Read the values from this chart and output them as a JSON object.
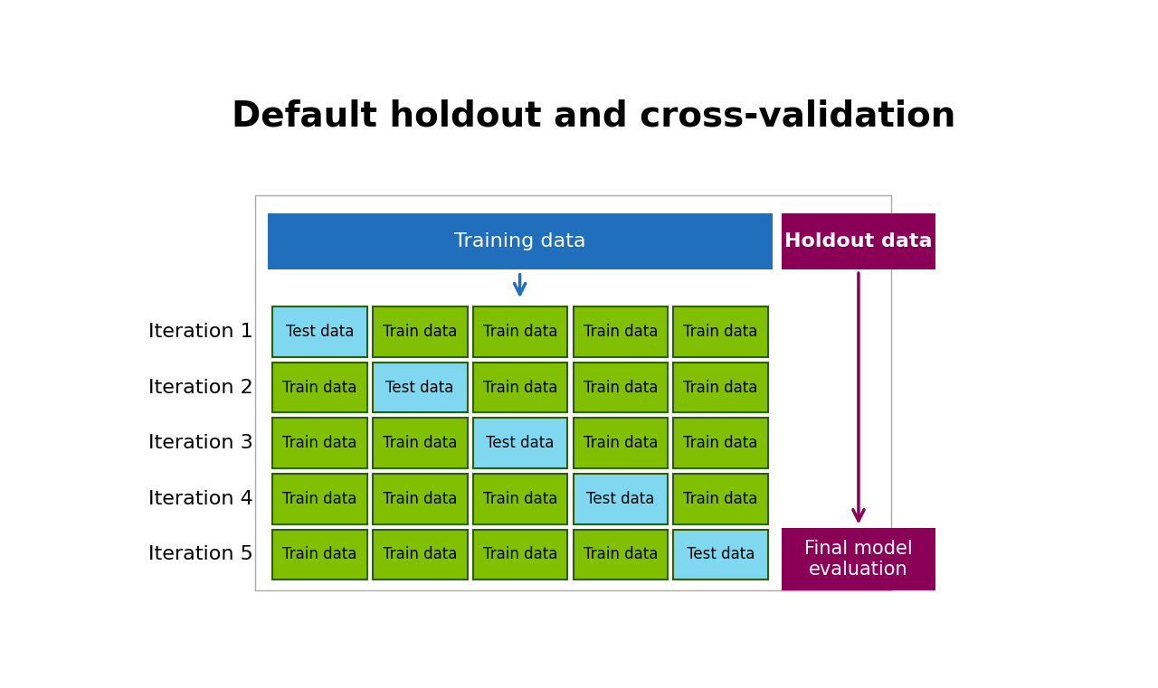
{
  "title": "Default holdout and cross-validation",
  "title_fontsize": 28,
  "title_fontweight": "bold",
  "bg_color": "#ffffff",
  "training_box": {
    "label": "Training data",
    "color": "#1f6fbd",
    "text_color": "#ffffff",
    "fontsize": 16
  },
  "holdout_box": {
    "label": "Holdout data",
    "color": "#8b0057",
    "text_color": "#ffffff",
    "fontsize": 16
  },
  "final_box": {
    "label": "Final model\nevaluation",
    "color": "#8b0057",
    "text_color": "#ffffff",
    "fontsize": 15
  },
  "train_cell_color": "#80c000",
  "test_cell_color": "#80d8f0",
  "cell_edge_color": "#2a6000",
  "cell_text_color": "#000000",
  "cell_fontsize": 12,
  "iterations": [
    "Iteration 1",
    "Iteration 2",
    "Iteration 3",
    "Iteration 4",
    "Iteration 5"
  ],
  "iteration_label_fontsize": 16,
  "arrow_color_blue": "#1f6fbd",
  "arrow_color_purple": "#8b0057",
  "outer_box_color": "#aaaaaa",
  "n_folds": 5,
  "test_fold": [
    0,
    1,
    2,
    3,
    4
  ]
}
